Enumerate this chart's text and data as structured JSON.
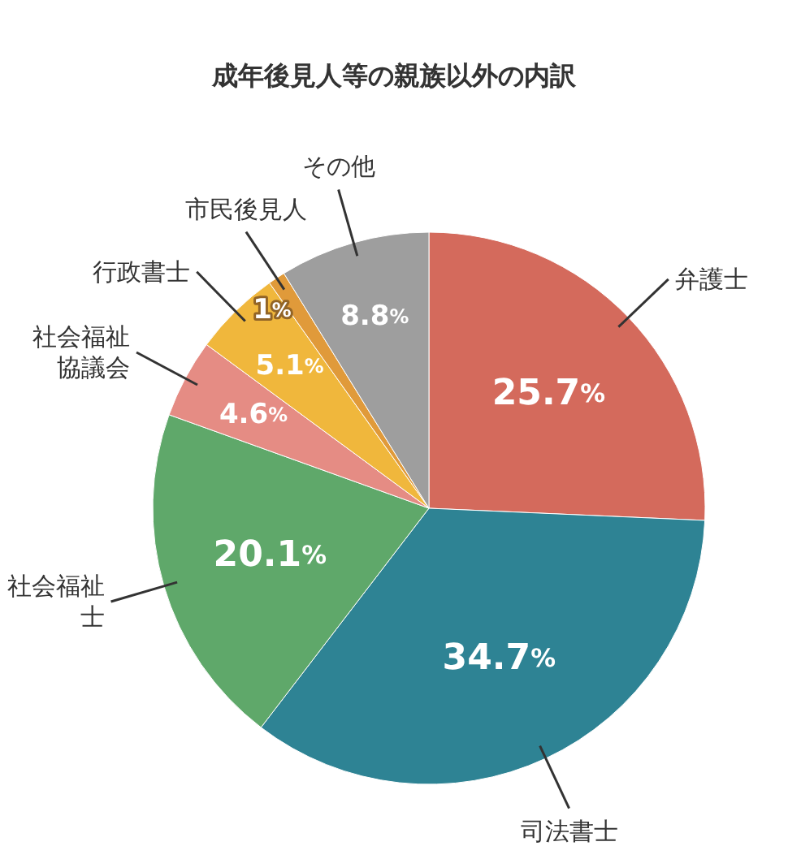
{
  "chart_data": {
    "type": "pie",
    "title": "成年後見人等の親族以外の内訳",
    "categories": [
      "弁護士",
      "司法書士",
      "社会福祉士",
      "社会福祉協議会",
      "行政書士",
      "市民後見人",
      "その他"
    ],
    "values": [
      25.7,
      34.7,
      20.1,
      4.6,
      5.1,
      1,
      8.8
    ],
    "value_labels": [
      "25.7%",
      "34.7%",
      "20.1%",
      "4.6%",
      "5.1%",
      "1%",
      "8.8%"
    ],
    "colors": [
      "#d46a5c",
      "#2e8394",
      "#5fa86a",
      "#e58c84",
      "#f0b73c",
      "#e09a3a",
      "#9e9e9e"
    ]
  }
}
